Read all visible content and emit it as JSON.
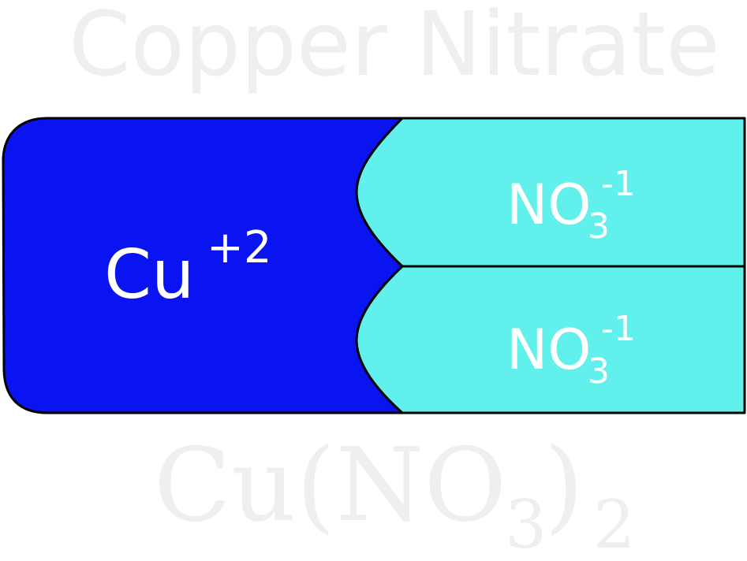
{
  "title": "Copper Nitrate",
  "formula": {
    "prefix": "Cu(NO",
    "subscript_inner": "3",
    "suffix": ")",
    "subscript_outer": "2"
  },
  "cation": {
    "symbol": "Cu",
    "charge": "+2",
    "color": "#0a14f0"
  },
  "anions": [
    {
      "symbol": "NO",
      "subscript": "3",
      "charge": "-1",
      "color": "#62f0ec"
    },
    {
      "symbol": "NO",
      "subscript": "3",
      "charge": "-1",
      "color": "#62f0ec"
    }
  ]
}
